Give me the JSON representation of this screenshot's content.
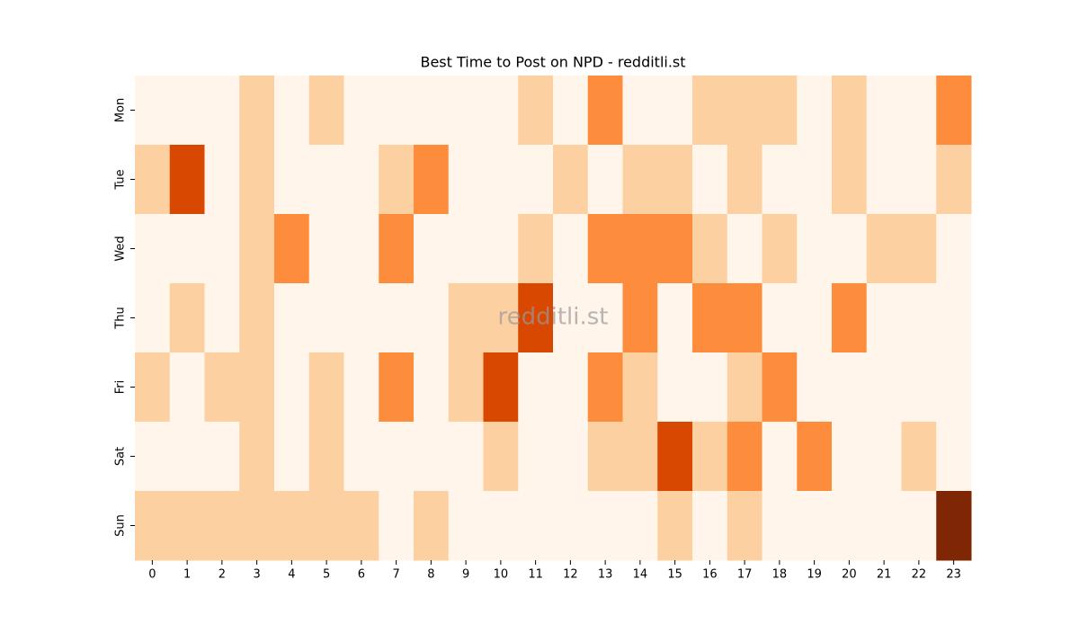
{
  "chart_data": {
    "type": "heatmap",
    "title": "Best Time to Post on NPD - redditli.st",
    "watermark": "redditli.st",
    "x_categories": [
      "0",
      "1",
      "2",
      "3",
      "4",
      "5",
      "6",
      "7",
      "8",
      "9",
      "10",
      "11",
      "12",
      "13",
      "14",
      "15",
      "16",
      "17",
      "18",
      "19",
      "20",
      "21",
      "22",
      "23"
    ],
    "y_categories": [
      "Mon",
      "Tue",
      "Wed",
      "Thu",
      "Fri",
      "Sat",
      "Sun"
    ],
    "values": [
      [
        0,
        0,
        0,
        1,
        0,
        1,
        0,
        0,
        0,
        0,
        0,
        1,
        0,
        2,
        0,
        0,
        1,
        1,
        1,
        0,
        1,
        0,
        0,
        2
      ],
      [
        1,
        3,
        0,
        1,
        0,
        0,
        0,
        1,
        2,
        0,
        0,
        0,
        1,
        0,
        1,
        1,
        0,
        1,
        0,
        0,
        1,
        0,
        0,
        1
      ],
      [
        0,
        0,
        0,
        1,
        2,
        0,
        0,
        2,
        0,
        0,
        0,
        1,
        0,
        2,
        2,
        2,
        1,
        0,
        1,
        0,
        0,
        1,
        1,
        0
      ],
      [
        0,
        1,
        0,
        1,
        0,
        0,
        0,
        0,
        0,
        1,
        1,
        3,
        0,
        0,
        2,
        0,
        2,
        2,
        0,
        0,
        2,
        0,
        0,
        0
      ],
      [
        1,
        0,
        1,
        1,
        0,
        1,
        0,
        2,
        0,
        1,
        3,
        0,
        0,
        2,
        1,
        0,
        0,
        1,
        2,
        0,
        0,
        0,
        0,
        0
      ],
      [
        0,
        0,
        0,
        1,
        0,
        1,
        0,
        0,
        0,
        0,
        1,
        0,
        0,
        1,
        1,
        3,
        1,
        2,
        0,
        2,
        0,
        0,
        1,
        0
      ],
      [
        1,
        1,
        1,
        1,
        1,
        1,
        1,
        0,
        1,
        0,
        0,
        0,
        0,
        0,
        0,
        1,
        0,
        1,
        0,
        0,
        0,
        0,
        0,
        4
      ]
    ],
    "colormap": [
      "#fff5eb",
      "#fdd0a2",
      "#fd8d3c",
      "#d94801",
      "#7f2704"
    ]
  }
}
